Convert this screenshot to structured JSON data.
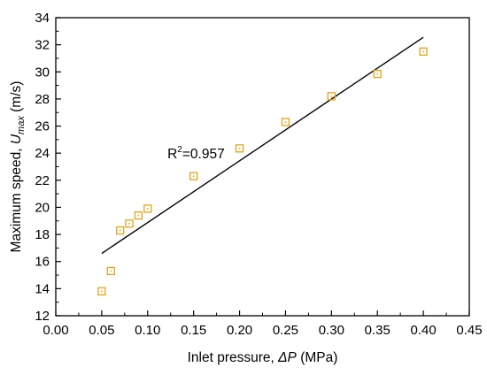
{
  "chart_data": {
    "type": "scatter",
    "xlabel_main": "Inlet pressure, ",
    "xlabel_sym": "ΔP",
    "xlabel_unit": " (MPa)",
    "ylabel_main": "Maximum speed, ",
    "ylabel_sym": "U",
    "ylabel_sub": "max",
    "ylabel_unit": " (m/s)",
    "xlim": [
      0.0,
      0.45
    ],
    "ylim": [
      12,
      34
    ],
    "xticks": [
      "0.00",
      "0.05",
      "0.10",
      "0.15",
      "0.20",
      "0.25",
      "0.30",
      "0.35",
      "0.40",
      "0.45"
    ],
    "yticks": [
      "12",
      "14",
      "16",
      "18",
      "20",
      "22",
      "24",
      "26",
      "28",
      "30",
      "32",
      "34"
    ],
    "series": [
      {
        "marker": "open-square",
        "color": "#E8A317",
        "x": [
          0.05,
          0.06,
          0.07,
          0.08,
          0.09,
          0.1,
          0.15,
          0.2,
          0.25,
          0.3,
          0.35,
          0.4
        ],
        "y": [
          13.8,
          15.3,
          18.3,
          18.8,
          19.4,
          19.9,
          22.3,
          24.35,
          26.3,
          28.2,
          29.85,
          31.5
        ]
      }
    ],
    "fit_line": {
      "x": [
        0.05,
        0.4
      ],
      "y": [
        16.6,
        32.55
      ],
      "color": "#000000"
    },
    "annotation_main": "R",
    "annotation_sup": "2",
    "annotation_rest": "=0.957",
    "annotation_pos": {
      "x": 0.135,
      "y": 24.0
    },
    "grid": false,
    "legend": "none"
  }
}
